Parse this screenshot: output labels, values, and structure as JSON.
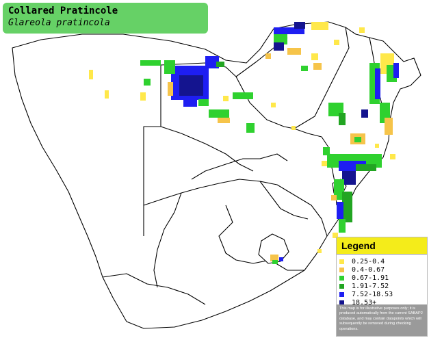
{
  "title": {
    "common_name": "Collared Pratincole",
    "scientific_name": "Glareola pratincola"
  },
  "legend": {
    "heading": "Legend",
    "items": [
      {
        "range": "0.25-0.4",
        "color": "#ffe84a"
      },
      {
        "range": "0.4-0.67",
        "color": "#f6c44a"
      },
      {
        "range": "0.67-1.91",
        "color": "#2fd12f"
      },
      {
        "range": "1.91-7.52",
        "color": "#22a522"
      },
      {
        "range": "7.52-18.53",
        "color": "#1e1ef2"
      },
      {
        "range": "18.53+",
        "color": "#14148f"
      }
    ],
    "disclaimer": "This map is for illustrative purposes only; it is produced automatically from the current SABAP2 database, and may contain datapoints which will subsequently be removed during checking operations."
  },
  "colors": {
    "title_box": "#66d166",
    "legend_header": "#f4ec1a",
    "land_fill": "#ffffff",
    "border_line": "#000000"
  }
}
